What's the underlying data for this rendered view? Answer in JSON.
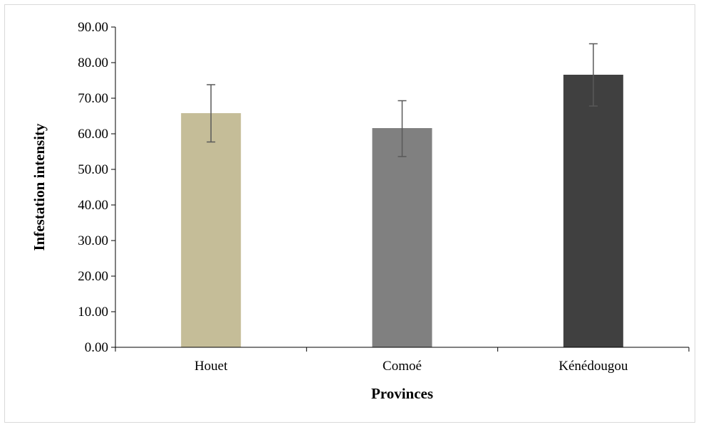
{
  "chart_data": {
    "type": "bar",
    "title": "",
    "xlabel": "Provinces",
    "ylabel": "Infestation intensity",
    "categories": [
      "Houet",
      "Comoé",
      "Kénédougou"
    ],
    "values": [
      65.8,
      61.6,
      76.6
    ],
    "error_low": [
      57.7,
      53.6,
      67.8
    ],
    "error_high": [
      73.8,
      69.3,
      85.3
    ],
    "bar_colors": [
      "#c5bd98",
      "#808080",
      "#404040"
    ],
    "ylim": [
      0,
      90
    ],
    "yticks": [
      "0.00",
      "10.00",
      "20.00",
      "30.00",
      "40.00",
      "50.00",
      "60.00",
      "70.00",
      "80.00",
      "90.00"
    ],
    "grid": false,
    "legend": "none"
  }
}
